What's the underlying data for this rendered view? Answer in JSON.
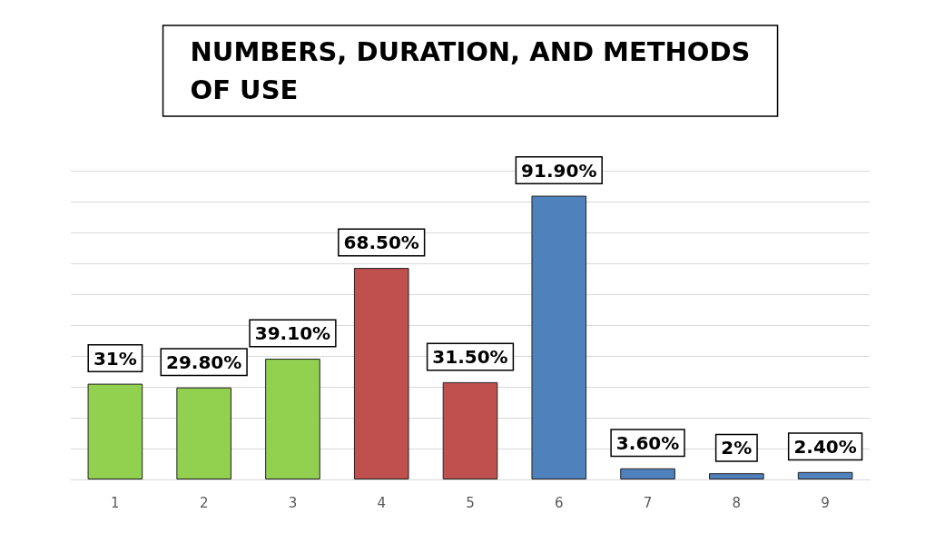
{
  "chart_data": {
    "type": "bar",
    "title": "NUMBERS, DURATION, AND METHODS\nOF USE",
    "categories": [
      "1",
      "2",
      "3",
      "4",
      "5",
      "6",
      "7",
      "8",
      "9"
    ],
    "values": [
      31,
      29.8,
      39.1,
      68.5,
      31.5,
      91.9,
      3.6,
      2,
      2.4
    ],
    "colors": [
      "#92d050",
      "#92d050",
      "#92d050",
      "#c0504d",
      "#c0504d",
      "#4f81bd",
      "#4f81bd",
      "#4f81bd",
      "#4f81bd"
    ],
    "value_labels": [
      "31%",
      "29.80%",
      "39.10%",
      "68.50%",
      "31.50%",
      "91.90%",
      "3.60%",
      "2%",
      "2.40%"
    ],
    "grid": "y"
  }
}
